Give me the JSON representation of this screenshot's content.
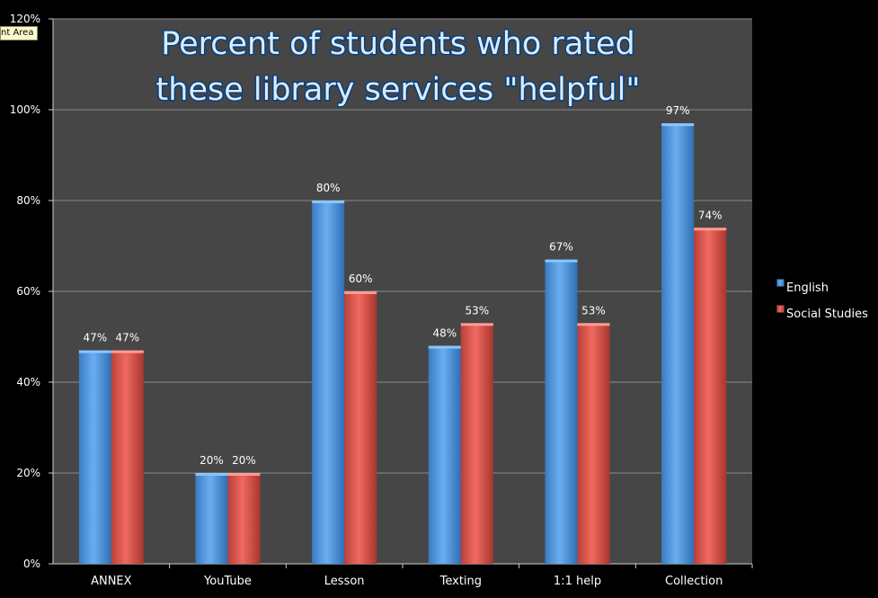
{
  "tooltip": "nt Area",
  "chart_data": {
    "type": "bar",
    "title_lines": [
      "Percent of students who rated",
      "these library services \"helpful\""
    ],
    "categories": [
      "ANNEX",
      "YouTube",
      "Lesson",
      "Texting",
      "1:1 help",
      "Collection"
    ],
    "series": [
      {
        "name": "English",
        "values": [
          47,
          20,
          80,
          48,
          67,
          97
        ],
        "labels": [
          "47%",
          "20%",
          "80%",
          "48%",
          "67%",
          "97%"
        ],
        "color": "#4a90d9"
      },
      {
        "name": "Social Studies",
        "values": [
          47,
          20,
          60,
          53,
          53,
          74
        ],
        "labels": [
          "47%",
          "20%",
          "60%",
          "53%",
          "53%",
          "74%"
        ],
        "color": "#d9534a"
      }
    ],
    "ylim": [
      0,
      120
    ],
    "yticks": [
      0,
      20,
      40,
      60,
      80,
      100,
      120
    ],
    "ytick_labels": [
      "0%",
      "20%",
      "40%",
      "60%",
      "80%",
      "100%",
      "120%"
    ],
    "grid": true,
    "legend_position": "right",
    "plot_background": "#464646",
    "page_background": "#000000"
  }
}
